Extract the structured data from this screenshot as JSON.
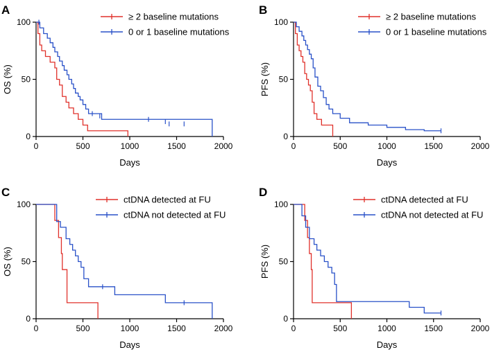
{
  "chart_data": [
    {
      "panel": "A",
      "type": "line",
      "step": true,
      "xlabel": "Days",
      "ylabel": "OS (%)",
      "xlim": [
        0,
        2000
      ],
      "ylim": [
        0,
        100
      ],
      "xticks": [
        0,
        500,
        1000,
        1500,
        2000
      ],
      "yticks": [
        0,
        50,
        100
      ],
      "legend_position": "top-right",
      "series": [
        {
          "name": "≥ 2 baseline mutations",
          "color": "#e0302a",
          "x": [
            0,
            20,
            40,
            60,
            100,
            150,
            200,
            220,
            250,
            280,
            320,
            350,
            400,
            450,
            500,
            550,
            980
          ],
          "y": [
            100,
            90,
            80,
            75,
            70,
            65,
            60,
            50,
            45,
            35,
            30,
            25,
            20,
            15,
            10,
            5,
            0
          ],
          "censored": []
        },
        {
          "name": "0 or 1 baseline mutations",
          "color": "#2850c8",
          "x": [
            0,
            40,
            80,
            120,
            150,
            180,
            200,
            230,
            250,
            280,
            300,
            330,
            350,
            380,
            400,
            420,
            450,
            470,
            500,
            530,
            560,
            700,
            1880
          ],
          "y": [
            100,
            95,
            90,
            86,
            82,
            78,
            74,
            70,
            66,
            62,
            58,
            54,
            50,
            46,
            42,
            38,
            35,
            32,
            28,
            24,
            20,
            15,
            0
          ],
          "censored": [
            [
              30,
              100
            ],
            [
              600,
              20
            ],
            [
              680,
              18
            ],
            [
              1200,
              15
            ],
            [
              1380,
              13
            ],
            [
              1420,
              11
            ],
            [
              1580,
              11
            ]
          ]
        }
      ]
    },
    {
      "panel": "B",
      "type": "line",
      "step": true,
      "xlabel": "Days",
      "ylabel": "PFS (%)",
      "xlim": [
        0,
        2000
      ],
      "ylim": [
        0,
        100
      ],
      "xticks": [
        0,
        500,
        1000,
        1500,
        2000
      ],
      "yticks": [
        0,
        50,
        100
      ],
      "legend_position": "top-right",
      "series": [
        {
          "name": "≥ 2 baseline mutations",
          "color": "#e0302a",
          "x": [
            0,
            20,
            40,
            60,
            80,
            100,
            120,
            140,
            160,
            180,
            200,
            220,
            250,
            300,
            420
          ],
          "y": [
            100,
            90,
            80,
            75,
            70,
            65,
            55,
            50,
            45,
            40,
            30,
            20,
            15,
            10,
            0
          ],
          "censored": []
        },
        {
          "name": "0 or 1 baseline mutations",
          "color": "#2850c8",
          "x": [
            0,
            30,
            60,
            90,
            110,
            130,
            150,
            170,
            190,
            210,
            230,
            260,
            290,
            320,
            350,
            380,
            420,
            500,
            600,
            800,
            1000,
            1200,
            1400,
            1580
          ],
          "y": [
            100,
            96,
            92,
            88,
            84,
            80,
            76,
            72,
            68,
            60,
            52,
            44,
            40,
            34,
            28,
            24,
            20,
            16,
            12,
            10,
            8,
            6,
            5,
            5
          ],
          "censored": [
            [
              1580,
              5
            ]
          ]
        }
      ]
    },
    {
      "panel": "C",
      "type": "line",
      "step": true,
      "xlabel": "Days",
      "ylabel": "OS (%)",
      "xlim": [
        0,
        2000
      ],
      "ylim": [
        0,
        100
      ],
      "xticks": [
        0,
        500,
        1000,
        1500,
        2000
      ],
      "yticks": [
        0,
        50,
        100
      ],
      "legend_position": "top-right",
      "series": [
        {
          "name": "ctDNA detected at FU",
          "color": "#e0302a",
          "x": [
            0,
            200,
            240,
            270,
            280,
            330,
            660
          ],
          "y": [
            100,
            86,
            71,
            57,
            43,
            14,
            0
          ],
          "censored": []
        },
        {
          "name": "ctDNA not detected at FU",
          "color": "#2850c8",
          "x": [
            0,
            220,
            260,
            320,
            360,
            390,
            420,
            450,
            480,
            510,
            560,
            840,
            1380,
            1880
          ],
          "y": [
            100,
            85,
            80,
            70,
            65,
            60,
            55,
            50,
            45,
            35,
            28,
            21,
            14,
            0
          ],
          "censored": [
            [
              710,
              28
            ],
            [
              1580,
              14
            ]
          ]
        }
      ]
    },
    {
      "panel": "D",
      "type": "line",
      "step": true,
      "xlabel": "Days",
      "ylabel": "PFS (%)",
      "xlim": [
        0,
        2000
      ],
      "ylim": [
        0,
        100
      ],
      "xticks": [
        0,
        500,
        1000,
        1500,
        2000
      ],
      "yticks": [
        0,
        50,
        100
      ],
      "legend_position": "top-right",
      "series": [
        {
          "name": "ctDNA detected at FU",
          "color": "#e0302a",
          "x": [
            0,
            120,
            150,
            170,
            190,
            200,
            620
          ],
          "y": [
            100,
            86,
            71,
            57,
            43,
            14,
            0
          ],
          "censored": []
        },
        {
          "name": "ctDNA not detected at FU",
          "color": "#2850c8",
          "x": [
            0,
            90,
            130,
            170,
            220,
            250,
            290,
            330,
            370,
            410,
            440,
            460,
            1240,
            1400,
            1580
          ],
          "y": [
            100,
            90,
            80,
            70,
            65,
            60,
            55,
            50,
            45,
            40,
            30,
            15,
            10,
            5,
            5
          ],
          "censored": [
            [
              1580,
              5
            ]
          ]
        }
      ]
    }
  ]
}
